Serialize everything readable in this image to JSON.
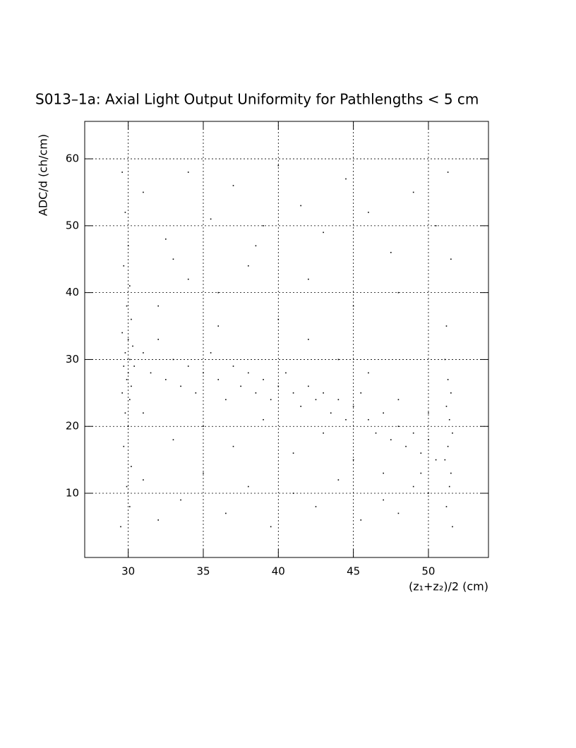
{
  "chart_data": {
    "type": "scatter",
    "title": "S013–1a: Axial Light Output Uniformity for Pathlengths < 5 cm",
    "x_label": "(z₁+z₂)/2 (cm)",
    "y_label": "ADC/d (ch/cm)",
    "xlim": [
      27.1,
      54
    ],
    "ylim": [
      0.4,
      65.6
    ],
    "xticks": [
      30,
      35,
      40,
      45,
      50
    ],
    "yticks": [
      10,
      20,
      30,
      40,
      50,
      60
    ],
    "grid": true,
    "color": "#000000",
    "x": [
      29.6,
      29.8,
      30.0,
      29.7,
      30.1,
      29.9,
      30.2,
      29.6,
      30.0,
      30.3,
      29.8,
      30.1,
      29.7,
      30.4,
      30.0,
      29.9,
      30.2,
      29.6,
      30.1,
      29.8,
      30.0,
      29.7,
      30.2,
      29.9,
      30.1,
      29.5,
      31,
      31.5,
      32,
      32.5,
      33,
      33.5,
      34,
      34.5,
      35,
      35.5,
      36,
      36.5,
      37,
      37.5,
      38,
      38.5,
      39,
      39.5,
      40,
      40.5,
      41,
      41.5,
      42,
      42.5,
      43,
      43.5,
      44,
      44.5,
      45,
      45.5,
      46,
      46.5,
      47,
      47.5,
      48,
      48.5,
      49,
      49.5,
      50,
      50.5,
      31,
      32,
      33,
      34,
      35,
      36,
      37,
      38,
      39,
      40,
      41,
      42,
      43,
      44,
      45,
      46,
      47,
      48,
      49,
      50,
      31,
      32.5,
      34,
      35.5,
      37,
      38.5,
      40,
      41.5,
      43,
      44.5,
      46,
      47.5,
      49,
      50.5,
      33,
      36,
      39,
      42,
      45,
      48,
      31,
      32,
      33.5,
      35,
      36.5,
      38,
      39.5,
      41,
      42.5,
      44,
      45.5,
      47,
      48,
      49.5,
      50,
      51.1,
      51.3,
      51.5,
      51.2,
      51.4,
      51.6,
      51.3,
      51.1,
      51.5,
      51.4,
      51.2,
      51.6,
      51.3,
      51.5,
      51.2
    ],
    "values": [
      58,
      52,
      47,
      44,
      41,
      38,
      36,
      34,
      33,
      32,
      31,
      30,
      29,
      29,
      28,
      27,
      26,
      25,
      24,
      22,
      20,
      17,
      14,
      11,
      8,
      5,
      31,
      28,
      33,
      27,
      30,
      26,
      29,
      25,
      28,
      31,
      27,
      24,
      29,
      26,
      28,
      25,
      27,
      24,
      26,
      28,
      25,
      23,
      26,
      24,
      25,
      22,
      24,
      21,
      23,
      25,
      21,
      19,
      22,
      18,
      20,
      17,
      19,
      16,
      18,
      15,
      22,
      38,
      18,
      42,
      20,
      35,
      17,
      44,
      21,
      36,
      16,
      33,
      19,
      30,
      15,
      28,
      13,
      24,
      11,
      22,
      55,
      48,
      58,
      51,
      56,
      47,
      59,
      53,
      49,
      57,
      52,
      46,
      55,
      50,
      45,
      40,
      50,
      42,
      38,
      40,
      12,
      6,
      9,
      13,
      7,
      11,
      5,
      10,
      8,
      12,
      6,
      9,
      7,
      13,
      10,
      30,
      27,
      25,
      23,
      21,
      19,
      17,
      15,
      13,
      11,
      8,
      5,
      58,
      45,
      35
    ]
  }
}
